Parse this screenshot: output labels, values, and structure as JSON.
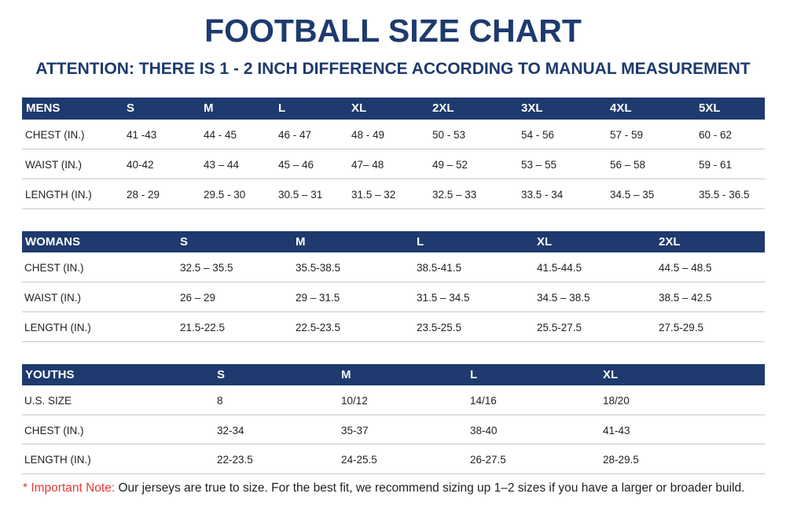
{
  "header": {
    "title": "FOOTBALL SIZE CHART",
    "subtitle": "ATTENTION: THERE IS 1 - 2 INCH DIFFERENCE ACCORDING TO MANUAL MEASUREMENT"
  },
  "tables": [
    {
      "header": [
        "MENS",
        "S",
        "M",
        "L",
        "XL",
        "2XL",
        "3XL",
        "4XL",
        "5XL"
      ],
      "rows": [
        [
          "CHEST (IN.)",
          "41 -43",
          "44 - 45",
          "46 - 47",
          "48 - 49",
          "50 - 53",
          "54 - 56",
          "57 - 59",
          "60 - 62"
        ],
        [
          "WAIST (IN.)",
          "40-42",
          "43 – 44",
          "45 – 46",
          "47– 48",
          "49 – 52",
          "53 – 55",
          "56 – 58",
          "59 - 61"
        ],
        [
          "LENGTH (IN.)",
          "28 - 29",
          "29.5 - 30",
          "30.5 – 31",
          "31.5 – 32",
          "32.5 – 33",
          "33.5 - 34",
          "34.5 – 35",
          "35.5 - 36.5"
        ]
      ]
    },
    {
      "header": [
        "WOMANS",
        "S",
        "M",
        "L",
        "XL",
        "2XL"
      ],
      "rows": [
        [
          "CHEST (IN.)",
          "32.5 – 35.5",
          "35.5-38.5",
          "38.5-41.5",
          "41.5-44.5",
          "44.5 – 48.5"
        ],
        [
          "WAIST (IN.)",
          "26 – 29",
          "29 – 31.5",
          "31.5 – 34.5",
          "34.5 – 38.5",
          "38.5 – 42.5"
        ],
        [
          "LENGTH (IN.)",
          "21.5-22.5",
          "22.5-23.5",
          "23.5-25.5",
          "25.5-27.5",
          "27.5-29.5"
        ]
      ]
    },
    {
      "header": [
        "YOUTHS",
        "S",
        "M",
        "L",
        "XL"
      ],
      "rows": [
        [
          "U.S. SIZE",
          "8",
          "10/12",
          "14/16",
          "18/20"
        ],
        [
          "CHEST (IN.)",
          "32-34",
          "35-37",
          "38-40",
          "41-43"
        ],
        [
          "LENGTH (IN.)",
          "22-23.5",
          "24-25.5",
          "26-27.5",
          "28-29.5"
        ]
      ]
    }
  ],
  "note": {
    "prefix": "* Important Note:",
    "text": "Our jerseys are true to size. For the best fit, we recommend sizing up 1–2 sizes if you have a larger or broader build."
  }
}
